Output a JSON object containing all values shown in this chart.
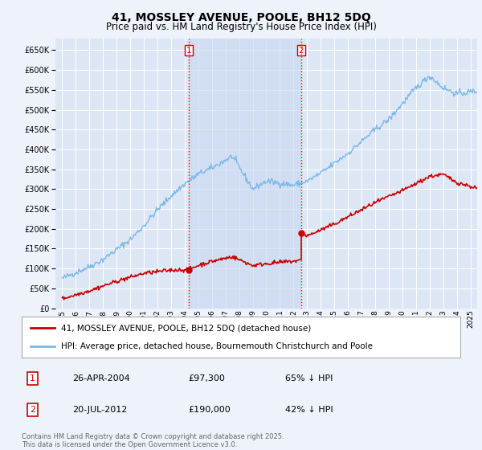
{
  "title_line1": "41, MOSSLEY AVENUE, POOLE, BH12 5DQ",
  "title_line2": "Price paid vs. HM Land Registry's House Price Index (HPI)",
  "background_color": "#eef2fb",
  "plot_bg_color": "#dce6f5",
  "shade_color": "#c8d8f0",
  "grid_color": "#ffffff",
  "hpi_color": "#7ab8e8",
  "price_color": "#cc0000",
  "sale1_date_num": 2004.32,
  "sale1_price": 97300,
  "sale2_date_num": 2012.55,
  "sale2_price": 190000,
  "legend_label1": "41, MOSSLEY AVENUE, POOLE, BH12 5DQ (detached house)",
  "legend_label2": "HPI: Average price, detached house, Bournemouth Christchurch and Poole",
  "footer1": "Contains HM Land Registry data © Crown copyright and database right 2025.",
  "footer2": "This data is licensed under the Open Government Licence v3.0.",
  "table_rows": [
    [
      "1",
      "26-APR-2004",
      "£97,300",
      "65% ↓ HPI"
    ],
    [
      "2",
      "20-JUL-2012",
      "£190,000",
      "42% ↓ HPI"
    ]
  ],
  "ylim": [
    0,
    680000
  ],
  "xlim_start": 1994.5,
  "xlim_end": 2025.5
}
